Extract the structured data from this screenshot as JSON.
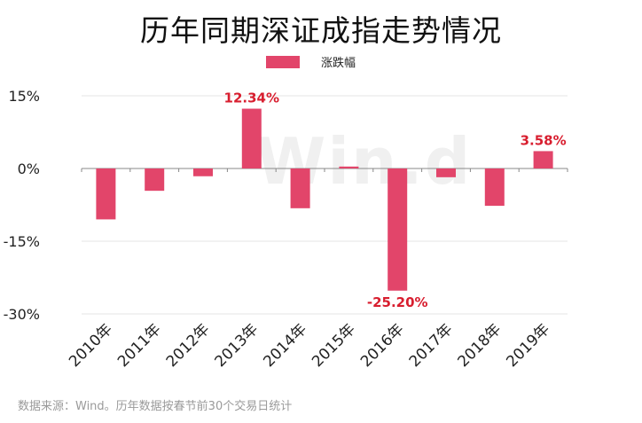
{
  "title": "历年同期深证成指走势情况",
  "legend": {
    "label": "涨跌幅"
  },
  "watermark": "Win.d",
  "source": "数据来源：Wind。历年数据按春节前30个交易日统计",
  "colors": {
    "bar": "#e2456a",
    "data_label": "#d81e2f",
    "grid": "#e6e6e6",
    "axis": "#888888"
  },
  "chart_data": {
    "type": "bar",
    "title": "历年同期深证成指走势情况",
    "categories": [
      "2010年",
      "2011年",
      "2012年",
      "2013年",
      "2014年",
      "2015年",
      "2016年",
      "2017年",
      "2018年",
      "2019年"
    ],
    "series": [
      {
        "name": "涨跌幅",
        "values": [
          -10.5,
          -4.6,
          -1.6,
          12.34,
          -8.2,
          0.4,
          -25.2,
          -1.8,
          -7.7,
          3.58
        ]
      }
    ],
    "data_labels": {
      "3": "12.34%",
      "6": "-25.20%",
      "9": "3.58%"
    },
    "yticks": [
      "15%",
      "0%",
      "-15%",
      "-30%"
    ],
    "ytick_values": [
      15,
      0,
      -15,
      -30
    ],
    "ylim": [
      -30,
      15
    ],
    "xlabel": "",
    "ylabel": "",
    "grid": true,
    "legend_position": "top"
  }
}
